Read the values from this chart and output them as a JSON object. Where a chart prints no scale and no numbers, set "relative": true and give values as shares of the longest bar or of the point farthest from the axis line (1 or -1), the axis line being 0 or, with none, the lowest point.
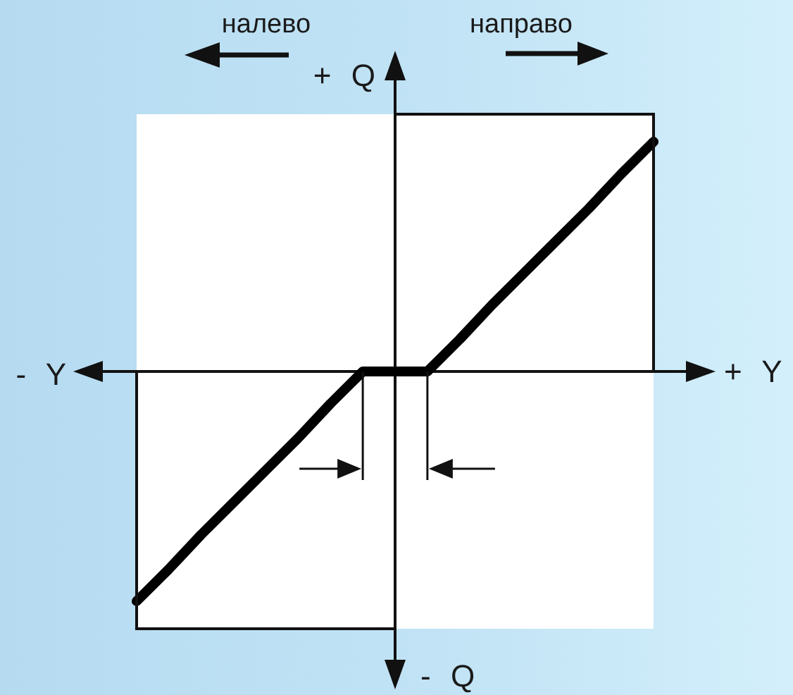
{
  "chart_data": {
    "type": "line",
    "relative": true,
    "categories": [
      null,
      null,
      null,
      null,
      null,
      null,
      null,
      null,
      null,
      null,
      null,
      null,
      null,
      null,
      null,
      null,
      null
    ],
    "series": [
      {
        "color": "#000000",
        "values": [
          -1,
          -0.86,
          -0.71,
          -0.57,
          -0.43,
          -0.29,
          -0.14,
          0,
          0,
          0,
          0.14,
          0.29,
          0.43,
          0.57,
          0.71,
          0.86,
          1
        ]
      }
    ],
    "xlabel": "+ Y",
    "ylabel": "+ Q",
    "annotations": [
      "- Y",
      "- Q",
      "налево",
      "направо"
    ],
    "marker": "none",
    "line_style": "solid"
  }
}
